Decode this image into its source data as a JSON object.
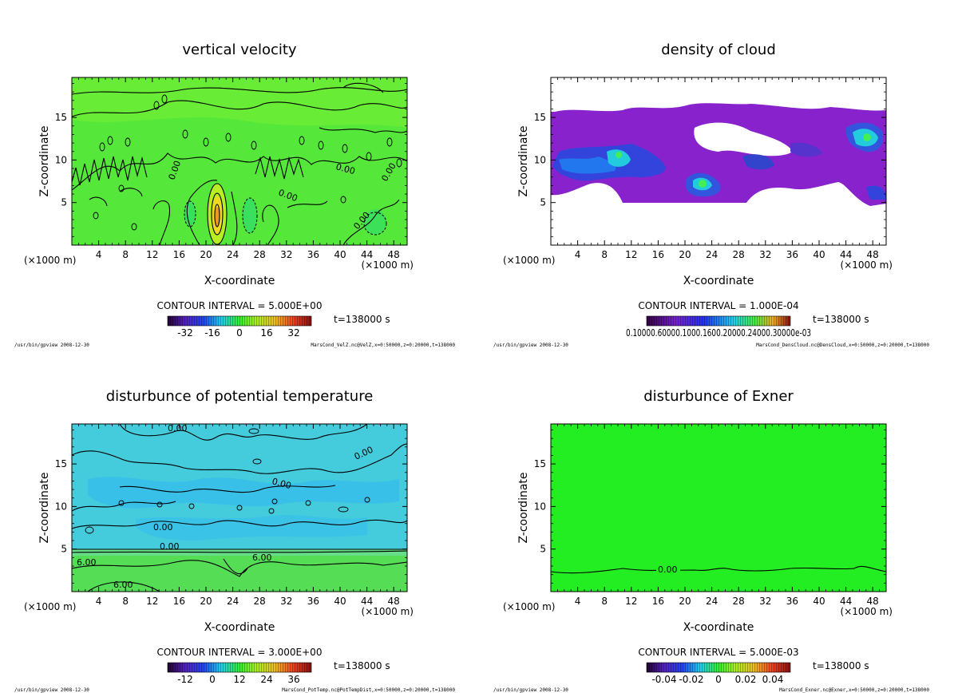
{
  "colors": {
    "green": "#33ee22",
    "cyan": "#22dddd",
    "purple": "#8822cc",
    "blue": "#2233dd"
  },
  "chart_data": [
    {
      "type": "heatmap",
      "title": "vertical velocity",
      "xlabel": "X-coordinate",
      "ylabel": "Z-coordinate",
      "xunit": "(×1000 m)",
      "xunit_right": "(×1000 m)",
      "xticks": [
        "4",
        "8",
        "12",
        "16",
        "20",
        "24",
        "28",
        "32",
        "36",
        "40",
        "44",
        "48"
      ],
      "yticks": [
        "5",
        "10",
        "15"
      ],
      "xlim": [
        0,
        50
      ],
      "ylim": [
        0,
        19.7
      ],
      "contour_interval": "CONTOUR INTERVAL = 5.000E+00",
      "time": "t=138000 s",
      "colorbar_ticks": [
        "-32",
        "-16",
        "0",
        "16",
        "32"
      ],
      "contour_labels": [
        "0.00",
        "0.00",
        "0.00",
        "0.00",
        "0.00"
      ],
      "footer_left": "/usr/bin/gpview  2008-12-30",
      "footer_right": "MarsCond_VelZ.nc@VelZ,x=0:50000,z=0:20000,t=138000"
    },
    {
      "type": "heatmap",
      "title": "density of cloud",
      "xlabel": "X-coordinate",
      "ylabel": "Z-coordinate",
      "xunit": "(×1000 m)",
      "xunit_right": "(×1000 m)",
      "xticks": [
        "4",
        "8",
        "12",
        "16",
        "20",
        "24",
        "28",
        "32",
        "36",
        "40",
        "44",
        "48"
      ],
      "yticks": [
        "5",
        "10",
        "15"
      ],
      "xlim": [
        0,
        50
      ],
      "ylim": [
        0,
        19.7
      ],
      "contour_interval": "CONTOUR INTERVAL = 1.000E-04",
      "time": "t=138000 s",
      "colorbar_ticks": [
        "0.10000.60000.1000.1600.20000.24000.30000e-03"
      ],
      "contour_labels": [],
      "footer_left": "/usr/bin/gpview  2008-12-30",
      "footer_right": "MarsCond_DensCloud.nc@DensCloud,x=0:50000,z=0:20000,t=138000"
    },
    {
      "type": "heatmap",
      "title": "disturbunce of potential temperature",
      "xlabel": "X-coordinate",
      "ylabel": "Z-coordinate",
      "xunit": "(×1000 m)",
      "xunit_right": "(×1000 m)",
      "xticks": [
        "4",
        "8",
        "12",
        "16",
        "20",
        "24",
        "28",
        "32",
        "36",
        "40",
        "44",
        "48"
      ],
      "yticks": [
        "5",
        "10",
        "15"
      ],
      "xlim": [
        0,
        50
      ],
      "ylim": [
        0,
        19.7
      ],
      "contour_interval": "CONTOUR INTERVAL = 3.000E+00",
      "time": "t=138000 s",
      "colorbar_ticks": [
        "-12",
        "0",
        "12",
        "24",
        "36"
      ],
      "contour_labels": [
        "0.00",
        "0.00",
        "0.00",
        "0.00",
        "0.00",
        "6.00",
        "6.00",
        "6.00"
      ],
      "footer_left": "/usr/bin/gpview  2008-12-30",
      "footer_right": "MarsCond_PotTemp.nc@PotTempDist,x=0:50000,z=0:20000,t=138000"
    },
    {
      "type": "heatmap",
      "title": "disturbunce of Exner",
      "xlabel": "X-coordinate",
      "ylabel": "Z-coordinate",
      "xunit": "(×1000 m)",
      "xunit_right": "(×1000 m)",
      "xticks": [
        "4",
        "8",
        "12",
        "16",
        "20",
        "24",
        "28",
        "32",
        "36",
        "40",
        "44",
        "48"
      ],
      "yticks": [
        "5",
        "10",
        "15"
      ],
      "xlim": [
        0,
        50
      ],
      "ylim": [
        0,
        19.7
      ],
      "contour_interval": "CONTOUR INTERVAL = 5.000E-03",
      "time": "t=138000 s",
      "colorbar_ticks": [
        "-0.04",
        "-0.02",
        "0",
        "0.02",
        "0.04"
      ],
      "contour_labels": [
        "0.00"
      ],
      "footer_left": "/usr/bin/gpview  2008-12-30",
      "footer_right": "MarsCond_Exner.nc@Exner,x=0:50000,z=0:20000,t=138000"
    }
  ]
}
